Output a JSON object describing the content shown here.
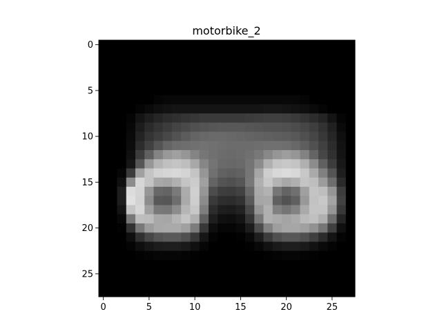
{
  "chart_data": {
    "type": "heatmap",
    "title": "motorbike_2",
    "xlabel": "",
    "ylabel": "",
    "colormap": "gray",
    "grid": false,
    "legend": "none",
    "rows": 28,
    "cols": 28,
    "xlim": [
      -0.5,
      27.5
    ],
    "ylim": [
      27.5,
      -0.5
    ],
    "xticks": [
      0,
      5,
      10,
      15,
      20,
      25
    ],
    "yticks": [
      0,
      5,
      10,
      15,
      20,
      25
    ],
    "value_range": [
      0,
      255
    ],
    "values": [
      [
        0,
        0,
        0,
        0,
        0,
        0,
        0,
        0,
        0,
        0,
        0,
        0,
        0,
        0,
        0,
        0,
        0,
        0,
        0,
        0,
        0,
        0,
        0,
        0,
        0,
        0,
        0,
        0
      ],
      [
        0,
        0,
        0,
        0,
        0,
        0,
        0,
        0,
        0,
        0,
        0,
        0,
        0,
        0,
        0,
        0,
        0,
        0,
        0,
        0,
        0,
        0,
        0,
        0,
        0,
        0,
        0,
        0
      ],
      [
        0,
        0,
        0,
        0,
        0,
        0,
        0,
        0,
        0,
        0,
        0,
        0,
        0,
        0,
        0,
        0,
        0,
        0,
        0,
        0,
        0,
        0,
        0,
        0,
        0,
        0,
        0,
        0
      ],
      [
        0,
        0,
        0,
        0,
        0,
        0,
        0,
        0,
        0,
        0,
        0,
        0,
        0,
        0,
        0,
        0,
        0,
        0,
        0,
        0,
        0,
        0,
        0,
        0,
        0,
        0,
        0,
        0
      ],
      [
        0,
        0,
        0,
        0,
        0,
        0,
        0,
        0,
        0,
        0,
        0,
        0,
        0,
        0,
        0,
        0,
        0,
        0,
        0,
        0,
        0,
        0,
        0,
        0,
        0,
        0,
        0,
        0
      ],
      [
        0,
        0,
        0,
        0,
        0,
        0,
        0,
        0,
        0,
        0,
        0,
        0,
        0,
        0,
        0,
        0,
        0,
        0,
        0,
        0,
        0,
        0,
        0,
        0,
        0,
        0,
        0,
        0
      ],
      [
        0,
        0,
        0,
        0,
        0,
        0,
        5,
        8,
        8,
        8,
        8,
        8,
        8,
        8,
        8,
        8,
        8,
        8,
        8,
        8,
        8,
        8,
        5,
        0,
        0,
        0,
        0,
        0
      ],
      [
        0,
        0,
        0,
        0,
        5,
        10,
        15,
        18,
        20,
        20,
        20,
        20,
        20,
        20,
        20,
        20,
        20,
        20,
        22,
        22,
        20,
        18,
        15,
        10,
        5,
        0,
        0,
        0
      ],
      [
        0,
        0,
        0,
        5,
        20,
        30,
        38,
        44,
        48,
        52,
        55,
        58,
        58,
        58,
        58,
        58,
        60,
        62,
        64,
        64,
        62,
        58,
        52,
        44,
        36,
        20,
        5,
        0
      ],
      [
        0,
        0,
        0,
        8,
        28,
        42,
        52,
        60,
        68,
        74,
        80,
        84,
        86,
        88,
        88,
        88,
        86,
        84,
        82,
        82,
        80,
        76,
        70,
        62,
        50,
        32,
        10,
        0
      ],
      [
        0,
        0,
        0,
        10,
        35,
        52,
        62,
        72,
        82,
        92,
        100,
        104,
        106,
        106,
        104,
        102,
        100,
        98,
        96,
        94,
        92,
        88,
        80,
        70,
        56,
        38,
        15,
        0
      ],
      [
        0,
        0,
        0,
        12,
        44,
        64,
        84,
        100,
        108,
        110,
        112,
        114,
        112,
        110,
        108,
        108,
        108,
        110,
        112,
        112,
        110,
        104,
        94,
        80,
        64,
        44,
        18,
        0
      ],
      [
        0,
        0,
        0,
        16,
        60,
        96,
        132,
        152,
        160,
        150,
        132,
        118,
        112,
        108,
        106,
        108,
        112,
        120,
        136,
        150,
        158,
        150,
        130,
        100,
        70,
        48,
        20,
        0
      ],
      [
        0,
        0,
        0,
        22,
        86,
        150,
        180,
        192,
        196,
        190,
        168,
        134,
        116,
        106,
        104,
        106,
        116,
        140,
        176,
        196,
        200,
        196,
        176,
        140,
        96,
        60,
        24,
        0
      ],
      [
        0,
        0,
        6,
        60,
        160,
        196,
        210,
        214,
        216,
        212,
        196,
        150,
        112,
        98,
        94,
        98,
        118,
        166,
        206,
        216,
        220,
        216,
        200,
        170,
        128,
        84,
        30,
        0
      ],
      [
        0,
        0,
        16,
        140,
        214,
        196,
        168,
        164,
        176,
        196,
        204,
        160,
        100,
        84,
        80,
        86,
        120,
        176,
        200,
        180,
        168,
        176,
        196,
        190,
        156,
        110,
        42,
        0
      ],
      [
        0,
        0,
        30,
        220,
        212,
        150,
        104,
        100,
        122,
        172,
        208,
        150,
        76,
        62,
        60,
        66,
        104,
        170,
        178,
        118,
        100,
        112,
        160,
        196,
        190,
        150,
        60,
        0
      ],
      [
        0,
        0,
        30,
        224,
        210,
        140,
        88,
        86,
        110,
        170,
        206,
        140,
        58,
        46,
        44,
        50,
        90,
        166,
        168,
        96,
        82,
        96,
        152,
        194,
        200,
        164,
        66,
        0
      ],
      [
        0,
        0,
        20,
        196,
        214,
        160,
        120,
        118,
        140,
        182,
        200,
        126,
        44,
        30,
        28,
        34,
        72,
        150,
        176,
        128,
        116,
        130,
        170,
        196,
        196,
        150,
        56,
        0
      ],
      [
        0,
        0,
        8,
        120,
        190,
        188,
        168,
        166,
        180,
        196,
        176,
        96,
        30,
        16,
        14,
        20,
        52,
        120,
        176,
        170,
        164,
        170,
        186,
        192,
        176,
        110,
        36,
        0
      ],
      [
        0,
        0,
        2,
        50,
        120,
        156,
        168,
        170,
        170,
        160,
        124,
        56,
        14,
        6,
        6,
        10,
        28,
        76,
        130,
        158,
        166,
        166,
        160,
        146,
        118,
        64,
        16,
        0
      ],
      [
        0,
        0,
        0,
        14,
        48,
        70,
        84,
        90,
        90,
        80,
        56,
        22,
        4,
        0,
        0,
        2,
        10,
        30,
        60,
        80,
        88,
        88,
        80,
        64,
        44,
        20,
        4,
        0
      ],
      [
        0,
        0,
        0,
        4,
        14,
        22,
        28,
        30,
        30,
        26,
        16,
        6,
        0,
        0,
        0,
        0,
        2,
        8,
        18,
        26,
        30,
        30,
        26,
        18,
        10,
        4,
        0,
        0
      ],
      [
        0,
        0,
        0,
        0,
        2,
        4,
        6,
        6,
        6,
        4,
        2,
        0,
        0,
        0,
        0,
        0,
        0,
        0,
        2,
        4,
        6,
        6,
        4,
        2,
        0,
        0,
        0,
        0
      ],
      [
        0,
        0,
        0,
        0,
        0,
        0,
        0,
        0,
        0,
        0,
        0,
        0,
        0,
        0,
        0,
        0,
        0,
        0,
        0,
        0,
        0,
        0,
        0,
        0,
        0,
        0,
        0,
        0
      ],
      [
        0,
        0,
        0,
        0,
        0,
        0,
        0,
        0,
        0,
        0,
        0,
        0,
        0,
        0,
        0,
        0,
        0,
        0,
        0,
        0,
        0,
        0,
        0,
        0,
        0,
        0,
        0,
        0
      ],
      [
        0,
        0,
        0,
        0,
        0,
        0,
        0,
        0,
        0,
        0,
        0,
        0,
        0,
        0,
        0,
        0,
        0,
        0,
        0,
        0,
        0,
        0,
        0,
        0,
        0,
        0,
        0,
        0
      ],
      [
        0,
        0,
        0,
        0,
        0,
        0,
        0,
        0,
        0,
        0,
        0,
        0,
        0,
        0,
        0,
        0,
        0,
        0,
        0,
        0,
        0,
        0,
        0,
        0,
        0,
        0,
        0,
        0
      ]
    ]
  }
}
